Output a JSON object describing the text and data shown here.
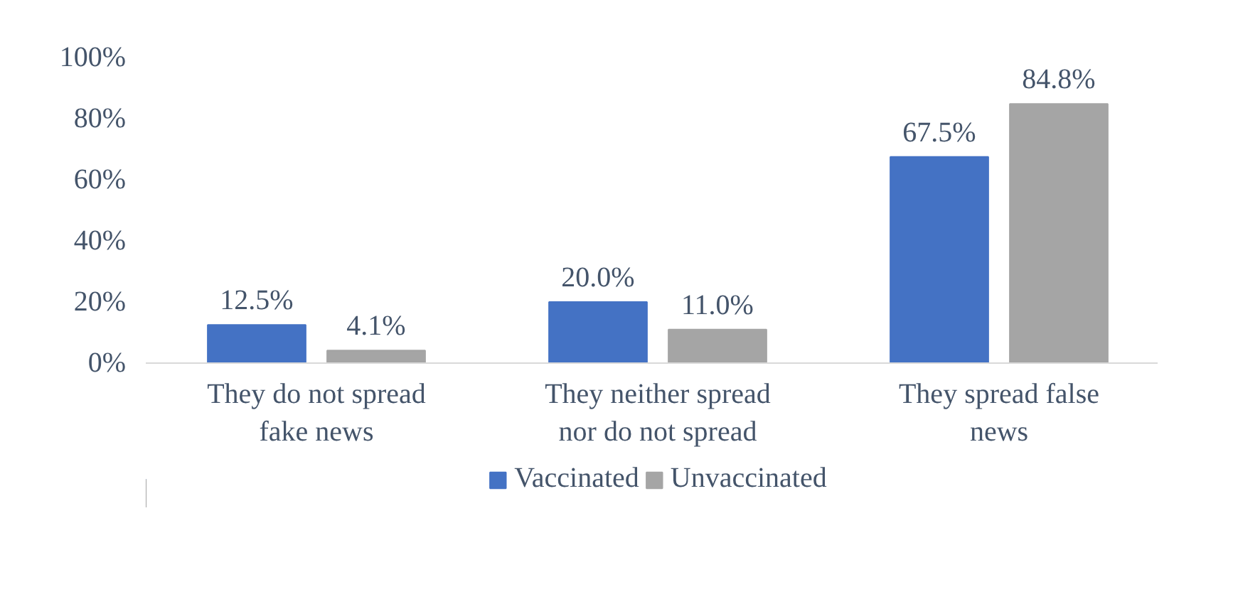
{
  "chart_data": {
    "type": "bar",
    "categories": [
      "They do not spread fake news",
      "They neither spread nor do not spread",
      "They spread false news"
    ],
    "series": [
      {
        "name": "Vaccinated",
        "color": "#4472c4",
        "values": [
          12.5,
          20.0,
          67.5
        ],
        "value_labels": [
          "12.5%",
          "20.0%",
          "67.5%"
        ]
      },
      {
        "name": "Unvaccinated",
        "color": "#a5a5a5",
        "values": [
          4.1,
          11.0,
          84.8
        ],
        "value_labels": [
          "4.1%",
          "11.0%",
          "84.8%"
        ]
      }
    ],
    "ylim": [
      0,
      100
    ],
    "yticks": [
      {
        "value": 0,
        "label": "0%"
      },
      {
        "value": 20,
        "label": "20%"
      },
      {
        "value": 40,
        "label": "40%"
      },
      {
        "value": 60,
        "label": "60%"
      },
      {
        "value": 80,
        "label": "80%"
      },
      {
        "value": 100,
        "label": "100%"
      }
    ],
    "grid": false,
    "legend": "bottom"
  }
}
